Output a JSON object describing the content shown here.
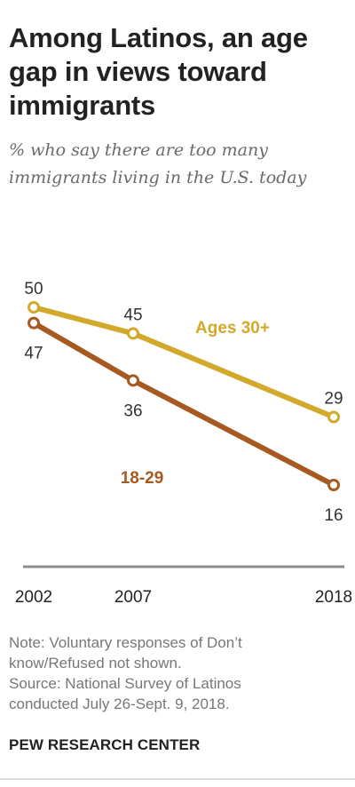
{
  "header": {
    "title_lines": [
      "Among Latinos, an age",
      "gap in views toward",
      "immigrants"
    ],
    "subtitle_lines": [
      "% who say there are too many",
      "immigrants living in the U.S. today"
    ]
  },
  "chart_data": {
    "type": "line",
    "x": [
      2002,
      2007,
      2018
    ],
    "x_tick_labels": [
      "2002",
      "2007",
      "2018"
    ],
    "series": [
      {
        "name": "Ages 30+",
        "values": [
          50,
          45,
          29
        ],
        "color": "#d3a92b"
      },
      {
        "name": "18-29",
        "values": [
          47,
          36,
          16
        ],
        "color": "#a65a20"
      }
    ],
    "title": "Among Latinos, an age gap in views toward immigrants",
    "subtitle": "% who say there are too many immigrants living in the U.S. today",
    "xlabel": "",
    "ylabel": "",
    "ylim": [
      10,
      55
    ],
    "grid": false,
    "legend": "inline labels"
  },
  "footer": {
    "note_lines": [
      "Note: Voluntary responses of Don’t",
      "know/Refused not shown.",
      "Source: National Survey of Latinos",
      "conducted July 26-Sept. 9, 2018."
    ],
    "brand": "PEW RESEARCH CENTER"
  }
}
